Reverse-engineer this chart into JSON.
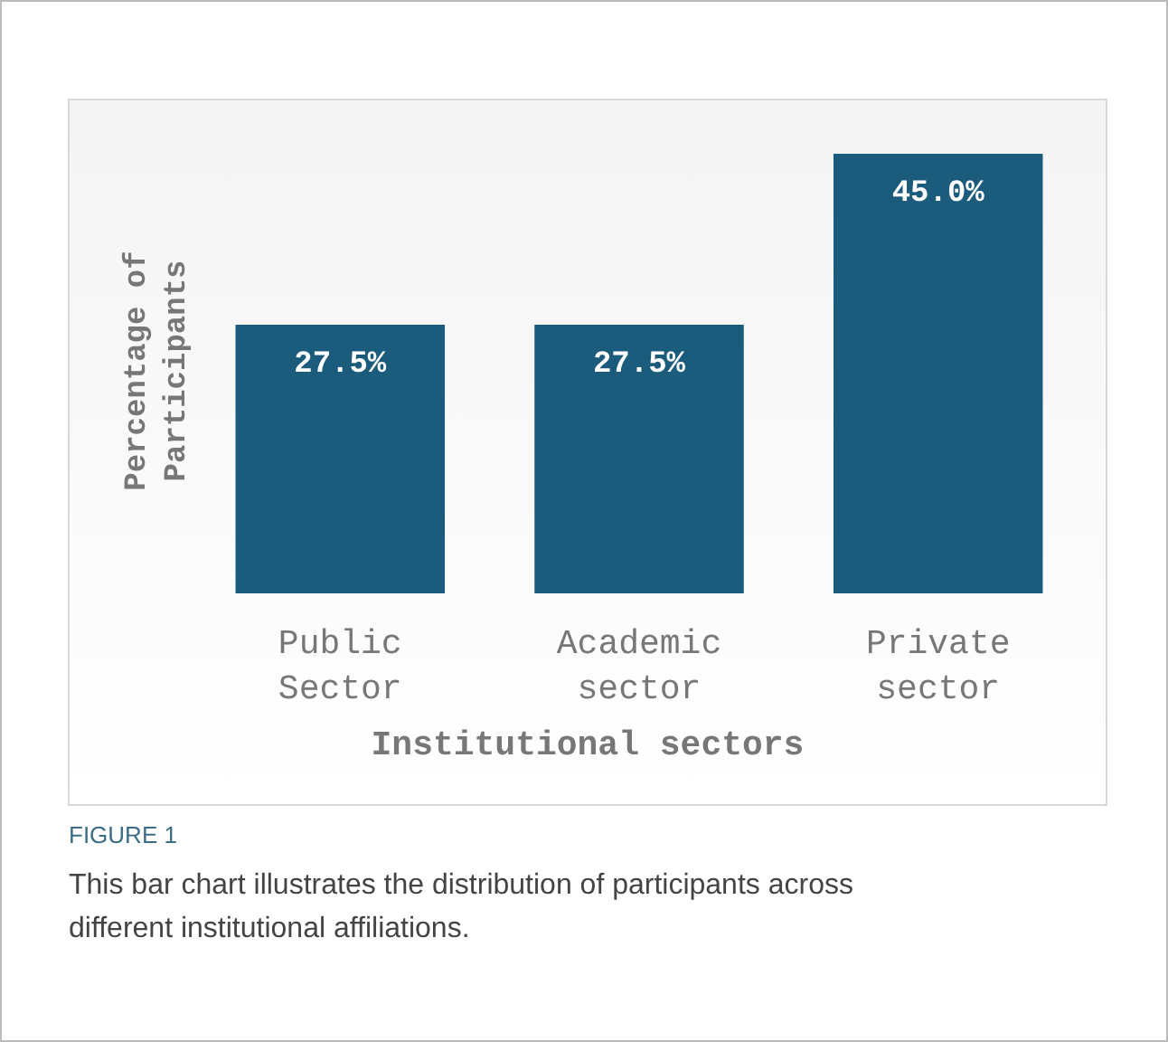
{
  "chart_data": {
    "type": "bar",
    "xlabel": "Institutional sectors",
    "ylabel": "Percentage of Participants",
    "categories": [
      "Public Sector",
      "Academic sector",
      "Private sector"
    ],
    "values": [
      27.5,
      27.5,
      45.0
    ],
    "value_labels": [
      "27.5%",
      "27.5%",
      "45.0%"
    ],
    "color": "#1b5b7c",
    "annotations": [
      "FIGURE 1",
      "This bar chart illustrates the distribution of participants across different institutional affiliations."
    ]
  }
}
